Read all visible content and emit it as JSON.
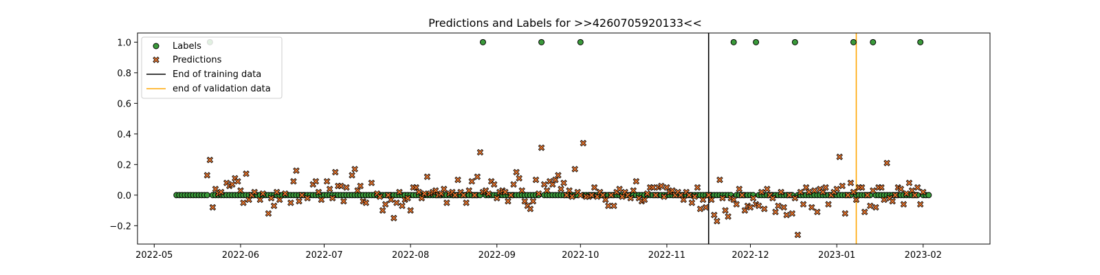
{
  "chart_data": {
    "type": "scatter",
    "title": "Predictions and Labels for >>4260705920133<<",
    "xlabel": "",
    "ylabel": "",
    "x_range": [
      "2022-04-25",
      "2023-02-25"
    ],
    "ylim": [
      -0.32,
      1.06
    ],
    "x_ticks": [
      "2022-05-01",
      "2022-06-01",
      "2022-07-01",
      "2022-08-01",
      "2022-09-01",
      "2022-10-01",
      "2022-11-01",
      "2022-12-01",
      "2023-01-01",
      "2023-02-01"
    ],
    "x_tick_labels": [
      "2022-05",
      "2022-06",
      "2022-07",
      "2022-08",
      "2022-09",
      "2022-10",
      "2022-11",
      "2022-12",
      "2023-01",
      "2023-02"
    ],
    "y_ticks": [
      -0.2,
      0.0,
      0.2,
      0.4,
      0.6,
      0.8,
      1.0
    ],
    "y_tick_labels": [
      "−0.2",
      "0.0",
      "0.2",
      "0.4",
      "0.6",
      "0.8",
      "1.0"
    ],
    "grid": false,
    "legend_position": "top-left",
    "series": [
      {
        "name": "Labels",
        "marker": "circle",
        "color": "#3a9a3a",
        "edge_color": "#000000",
        "baseline": {
          "value": 0.0,
          "start": "2022-05-09",
          "end": "2023-02-03",
          "step_days": 1
        },
        "positives": [
          "2022-05-21",
          "2022-08-27",
          "2022-09-17",
          "2022-10-01",
          "2022-11-25",
          "2022-12-03",
          "2022-12-17",
          "2023-01-07",
          "2023-01-14",
          "2023-01-31"
        ]
      },
      {
        "name": "Predictions",
        "marker": "x",
        "color": "#e8742c",
        "edge_color": "#000000",
        "points": [
          [
            "2022-05-20",
            0.13
          ],
          [
            "2022-05-21",
            0.23
          ],
          [
            "2022-05-22",
            -0.08
          ],
          [
            "2022-05-23",
            0.04
          ],
          [
            "2022-05-24",
            0.01
          ],
          [
            "2022-05-25",
            0.02
          ],
          [
            "2022-05-27",
            0.08
          ],
          [
            "2022-05-28",
            0.06
          ],
          [
            "2022-05-29",
            0.07
          ],
          [
            "2022-05-30",
            0.11
          ],
          [
            "2022-05-31",
            0.09
          ],
          [
            "2022-06-01",
            0.03
          ],
          [
            "2022-06-02",
            -0.05
          ],
          [
            "2022-06-03",
            0.14
          ],
          [
            "2022-06-04",
            -0.03
          ],
          [
            "2022-06-05",
            0.0
          ],
          [
            "2022-06-06",
            0.02
          ],
          [
            "2022-06-08",
            -0.03
          ],
          [
            "2022-06-09",
            0.01
          ],
          [
            "2022-06-11",
            -0.12
          ],
          [
            "2022-06-12",
            -0.02
          ],
          [
            "2022-06-13",
            -0.07
          ],
          [
            "2022-06-14",
            0.02
          ],
          [
            "2022-06-15",
            -0.03
          ],
          [
            "2022-06-17",
            0.01
          ],
          [
            "2022-06-19",
            -0.05
          ],
          [
            "2022-06-20",
            0.09
          ],
          [
            "2022-06-21",
            0.16
          ],
          [
            "2022-06-22",
            -0.04
          ],
          [
            "2022-06-23",
            0.0
          ],
          [
            "2022-06-25",
            -0.02
          ],
          [
            "2022-06-27",
            0.07
          ],
          [
            "2022-06-28",
            0.09
          ],
          [
            "2022-06-29",
            0.02
          ],
          [
            "2022-06-30",
            -0.03
          ],
          [
            "2022-07-02",
            0.09
          ],
          [
            "2022-07-03",
            0.04
          ],
          [
            "2022-07-04",
            -0.02
          ],
          [
            "2022-07-05",
            0.15
          ],
          [
            "2022-07-06",
            0.06
          ],
          [
            "2022-07-07",
            0.06
          ],
          [
            "2022-07-08",
            -0.04
          ],
          [
            "2022-07-09",
            0.05
          ],
          [
            "2022-07-11",
            0.13
          ],
          [
            "2022-07-12",
            0.17
          ],
          [
            "2022-07-13",
            0.03
          ],
          [
            "2022-07-14",
            0.06
          ],
          [
            "2022-07-15",
            -0.04
          ],
          [
            "2022-07-16",
            -0.05
          ],
          [
            "2022-07-18",
            0.08
          ],
          [
            "2022-07-20",
            0.01
          ],
          [
            "2022-07-21",
            -0.01
          ],
          [
            "2022-07-22",
            -0.1
          ],
          [
            "2022-07-23",
            -0.06
          ],
          [
            "2022-07-24",
            0.0
          ],
          [
            "2022-07-25",
            -0.03
          ],
          [
            "2022-07-26",
            -0.15
          ],
          [
            "2022-07-27",
            -0.05
          ],
          [
            "2022-07-28",
            0.02
          ],
          [
            "2022-07-29",
            -0.07
          ],
          [
            "2022-07-30",
            -0.03
          ],
          [
            "2022-07-31",
            -0.02
          ],
          [
            "2022-08-01",
            -0.1
          ],
          [
            "2022-08-02",
            0.05
          ],
          [
            "2022-08-03",
            0.05
          ],
          [
            "2022-08-04",
            0.02
          ],
          [
            "2022-08-05",
            -0.02
          ],
          [
            "2022-08-06",
            0.01
          ],
          [
            "2022-08-07",
            0.12
          ],
          [
            "2022-08-08",
            0.01
          ],
          [
            "2022-08-09",
            0.02
          ],
          [
            "2022-08-10",
            0.03
          ],
          [
            "2022-08-11",
            0.0
          ],
          [
            "2022-08-12",
            0.01
          ],
          [
            "2022-08-13",
            0.04
          ],
          [
            "2022-08-14",
            -0.05
          ],
          [
            "2022-08-15",
            0.01
          ],
          [
            "2022-08-16",
            0.02
          ],
          [
            "2022-08-17",
            0.0
          ],
          [
            "2022-08-18",
            0.1
          ],
          [
            "2022-08-19",
            0.02
          ],
          [
            "2022-08-20",
            0.0
          ],
          [
            "2022-08-21",
            -0.05
          ],
          [
            "2022-08-22",
            0.03
          ],
          [
            "2022-08-23",
            0.09
          ],
          [
            "2022-08-24",
            0.0
          ],
          [
            "2022-08-25",
            0.12
          ],
          [
            "2022-08-26",
            0.28
          ],
          [
            "2022-08-27",
            0.02
          ],
          [
            "2022-08-28",
            0.03
          ],
          [
            "2022-08-29",
            0.01
          ],
          [
            "2022-08-30",
            0.09
          ],
          [
            "2022-08-31",
            0.07
          ],
          [
            "2022-09-01",
            -0.02
          ],
          [
            "2022-09-02",
            0.02
          ],
          [
            "2022-09-03",
            0.03
          ],
          [
            "2022-09-04",
            0.02
          ],
          [
            "2022-09-05",
            -0.04
          ],
          [
            "2022-09-06",
            0.0
          ],
          [
            "2022-09-07",
            0.07
          ],
          [
            "2022-09-08",
            0.15
          ],
          [
            "2022-09-09",
            0.11
          ],
          [
            "2022-09-10",
            0.03
          ],
          [
            "2022-09-11",
            -0.04
          ],
          [
            "2022-09-12",
            -0.07
          ],
          [
            "2022-09-13",
            -0.09
          ],
          [
            "2022-09-14",
            -0.04
          ],
          [
            "2022-09-15",
            0.1
          ],
          [
            "2022-09-16",
            0.01
          ],
          [
            "2022-09-17",
            0.31
          ],
          [
            "2022-09-18",
            0.07
          ],
          [
            "2022-09-19",
            0.03
          ],
          [
            "2022-09-20",
            0.09
          ],
          [
            "2022-09-21",
            0.07
          ],
          [
            "2022-09-22",
            0.1
          ],
          [
            "2022-09-23",
            0.13
          ],
          [
            "2022-09-24",
            0.04
          ],
          [
            "2022-09-25",
            0.08
          ],
          [
            "2022-09-26",
            0.0
          ],
          [
            "2022-09-27",
            0.03
          ],
          [
            "2022-09-28",
            -0.01
          ],
          [
            "2022-09-29",
            0.17
          ],
          [
            "2022-09-30",
            0.02
          ],
          [
            "2022-10-01",
            0.0
          ],
          [
            "2022-10-02",
            0.34
          ],
          [
            "2022-10-03",
            -0.01
          ],
          [
            "2022-10-04",
            -0.01
          ],
          [
            "2022-10-05",
            0.0
          ],
          [
            "2022-10-06",
            0.05
          ],
          [
            "2022-10-07",
            -0.01
          ],
          [
            "2022-10-08",
            0.02
          ],
          [
            "2022-10-09",
            0.0
          ],
          [
            "2022-10-10",
            -0.03
          ],
          [
            "2022-10-11",
            -0.07
          ],
          [
            "2022-10-12",
            0.0
          ],
          [
            "2022-10-13",
            -0.07
          ],
          [
            "2022-10-14",
            0.02
          ],
          [
            "2022-10-15",
            0.04
          ],
          [
            "2022-10-16",
            -0.01
          ],
          [
            "2022-10-17",
            0.02
          ],
          [
            "2022-10-18",
            0.0
          ],
          [
            "2022-10-19",
            -0.02
          ],
          [
            "2022-10-20",
            0.03
          ],
          [
            "2022-10-21",
            0.09
          ],
          [
            "2022-10-22",
            -0.02
          ],
          [
            "2022-10-23",
            -0.04
          ],
          [
            "2022-10-24",
            -0.03
          ],
          [
            "2022-10-25",
            0.01
          ],
          [
            "2022-10-26",
            0.05
          ],
          [
            "2022-10-27",
            0.05
          ],
          [
            "2022-10-28",
            0.0
          ],
          [
            "2022-10-29",
            0.05
          ],
          [
            "2022-10-30",
            0.06
          ],
          [
            "2022-10-31",
            -0.01
          ],
          [
            "2022-11-01",
            0.05
          ],
          [
            "2022-11-02",
            0.02
          ],
          [
            "2022-11-03",
            0.03
          ],
          [
            "2022-11-04",
            0.0
          ],
          [
            "2022-11-05",
            0.02
          ],
          [
            "2022-11-06",
            0.0
          ],
          [
            "2022-11-07",
            -0.03
          ],
          [
            "2022-11-08",
            0.02
          ],
          [
            "2022-11-09",
            0.0
          ],
          [
            "2022-11-10",
            -0.05
          ],
          [
            "2022-11-11",
            -0.01
          ],
          [
            "2022-11-12",
            0.05
          ],
          [
            "2022-11-13",
            -0.09
          ],
          [
            "2022-11-14",
            -0.03
          ],
          [
            "2022-11-15",
            -0.08
          ],
          [
            "2022-11-16",
            0.0
          ],
          [
            "2022-11-17",
            -0.03
          ],
          [
            "2022-11-18",
            -0.13
          ],
          [
            "2022-11-19",
            -0.17
          ],
          [
            "2022-11-20",
            0.1
          ],
          [
            "2022-11-21",
            -0.02
          ],
          [
            "2022-11-22",
            -0.1
          ],
          [
            "2022-11-23",
            -0.14
          ],
          [
            "2022-11-24",
            -0.02
          ],
          [
            "2022-11-25",
            -0.03
          ],
          [
            "2022-11-26",
            -0.06
          ],
          [
            "2022-11-27",
            0.04
          ],
          [
            "2022-11-28",
            0.0
          ],
          [
            "2022-11-29",
            -0.1
          ],
          [
            "2022-11-30",
            -0.07
          ],
          [
            "2022-12-01",
            -0.08
          ],
          [
            "2022-12-02",
            -0.02
          ],
          [
            "2022-12-03",
            -0.06
          ],
          [
            "2022-12-04",
            -0.07
          ],
          [
            "2022-12-05",
            0.02
          ],
          [
            "2022-12-06",
            -0.09
          ],
          [
            "2022-12-07",
            0.04
          ],
          [
            "2022-12-08",
            0.0
          ],
          [
            "2022-12-09",
            -0.02
          ],
          [
            "2022-12-10",
            -0.11
          ],
          [
            "2022-12-11",
            -0.07
          ],
          [
            "2022-12-12",
            0.02
          ],
          [
            "2022-12-13",
            -0.08
          ],
          [
            "2022-12-14",
            -0.13
          ],
          [
            "2022-12-15",
            0.0
          ],
          [
            "2022-12-16",
            -0.12
          ],
          [
            "2022-12-17",
            -0.02
          ],
          [
            "2022-12-18",
            -0.26
          ],
          [
            "2022-12-19",
            0.02
          ],
          [
            "2022-12-20",
            -0.06
          ],
          [
            "2022-12-21",
            0.05
          ],
          [
            "2022-12-22",
            0.02
          ],
          [
            "2022-12-23",
            -0.08
          ],
          [
            "2022-12-24",
            0.03
          ],
          [
            "2022-12-25",
            -0.11
          ],
          [
            "2022-12-26",
            0.04
          ],
          [
            "2022-12-27",
            0.02
          ],
          [
            "2022-12-28",
            0.05
          ],
          [
            "2022-12-29",
            -0.06
          ],
          [
            "2022-12-30",
            0.0
          ],
          [
            "2022-12-31",
            0.02
          ],
          [
            "2023-01-01",
            0.04
          ],
          [
            "2023-01-02",
            0.25
          ],
          [
            "2023-01-03",
            0.06
          ],
          [
            "2023-01-04",
            -0.12
          ],
          [
            "2023-01-05",
            0.0
          ],
          [
            "2023-01-06",
            0.08
          ],
          [
            "2023-01-07",
            0.02
          ],
          [
            "2023-01-08",
            -0.03
          ],
          [
            "2023-01-09",
            0.05
          ],
          [
            "2023-01-10",
            0.05
          ],
          [
            "2023-01-11",
            -0.11
          ],
          [
            "2023-01-12",
            0.0
          ],
          [
            "2023-01-13",
            -0.07
          ],
          [
            "2023-01-14",
            0.03
          ],
          [
            "2023-01-15",
            -0.08
          ],
          [
            "2023-01-16",
            0.05
          ],
          [
            "2023-01-17",
            0.05
          ],
          [
            "2023-01-18",
            -0.03
          ],
          [
            "2023-01-19",
            0.21
          ],
          [
            "2023-01-20",
            -0.02
          ],
          [
            "2023-01-21",
            -0.04
          ],
          [
            "2023-01-22",
            0.0
          ],
          [
            "2023-01-23",
            0.05
          ],
          [
            "2023-01-24",
            0.04
          ],
          [
            "2023-01-25",
            -0.06
          ],
          [
            "2023-01-26",
            0.01
          ],
          [
            "2023-01-27",
            0.08
          ],
          [
            "2023-01-28",
            0.03
          ],
          [
            "2023-01-29",
            0.0
          ],
          [
            "2023-01-30",
            0.05
          ],
          [
            "2023-01-31",
            -0.06
          ],
          [
            "2023-02-01",
            0.02
          ]
        ]
      }
    ],
    "vlines": [
      {
        "name": "End of training data",
        "x": "2022-11-16",
        "color": "#000000"
      },
      {
        "name": "end of validation data",
        "x": "2023-01-08",
        "color": "#ffa500"
      }
    ],
    "legend": [
      "Labels",
      "Predictions",
      "End of training data",
      "end of validation data"
    ]
  }
}
